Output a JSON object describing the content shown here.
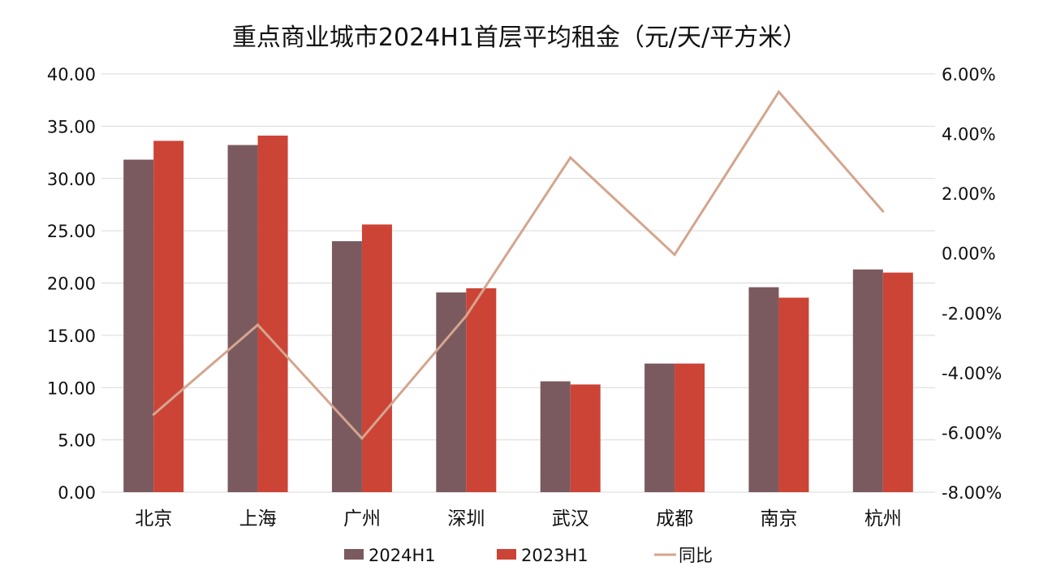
{
  "chart_data": {
    "type": "bar",
    "title": "重点商业城市2024H1首层平均租金（元/天/平方米）",
    "categories": [
      "北京",
      "上海",
      "广州",
      "深圳",
      "武汉",
      "成都",
      "南京",
      "杭州"
    ],
    "series": [
      {
        "name": "2024H1",
        "type": "bar",
        "axis": "left",
        "color": "#7b5a5f",
        "values": [
          31.8,
          33.2,
          24.0,
          19.1,
          10.6,
          12.3,
          19.6,
          21.3
        ]
      },
      {
        "name": "2023H1",
        "type": "bar",
        "axis": "left",
        "color": "#cc4436",
        "values": [
          33.6,
          34.1,
          25.6,
          19.5,
          10.3,
          12.3,
          18.6,
          21.0
        ]
      },
      {
        "name": "同比",
        "type": "line",
        "axis": "right",
        "color": "#d4a58e",
        "values": [
          -5.4,
          -2.4,
          -6.2,
          -2.1,
          3.2,
          -0.05,
          5.4,
          1.4
        ]
      }
    ],
    "y_left": {
      "min": 0,
      "max": 40,
      "step": 5,
      "ticks": [
        "0.00",
        "5.00",
        "10.00",
        "15.00",
        "20.00",
        "25.00",
        "30.00",
        "35.00",
        "40.00"
      ]
    },
    "y_right": {
      "min": -8,
      "max": 6,
      "step": 2,
      "ticks": [
        "-8.00%",
        "-6.00%",
        "-4.00%",
        "-2.00%",
        "0.00%",
        "2.00%",
        "4.00%",
        "6.00%"
      ]
    },
    "grid": true,
    "legend_position": "bottom",
    "colors": {
      "gridline": "#d9d9d9",
      "axis": "#d9d9d9",
      "text": "#111111"
    }
  }
}
